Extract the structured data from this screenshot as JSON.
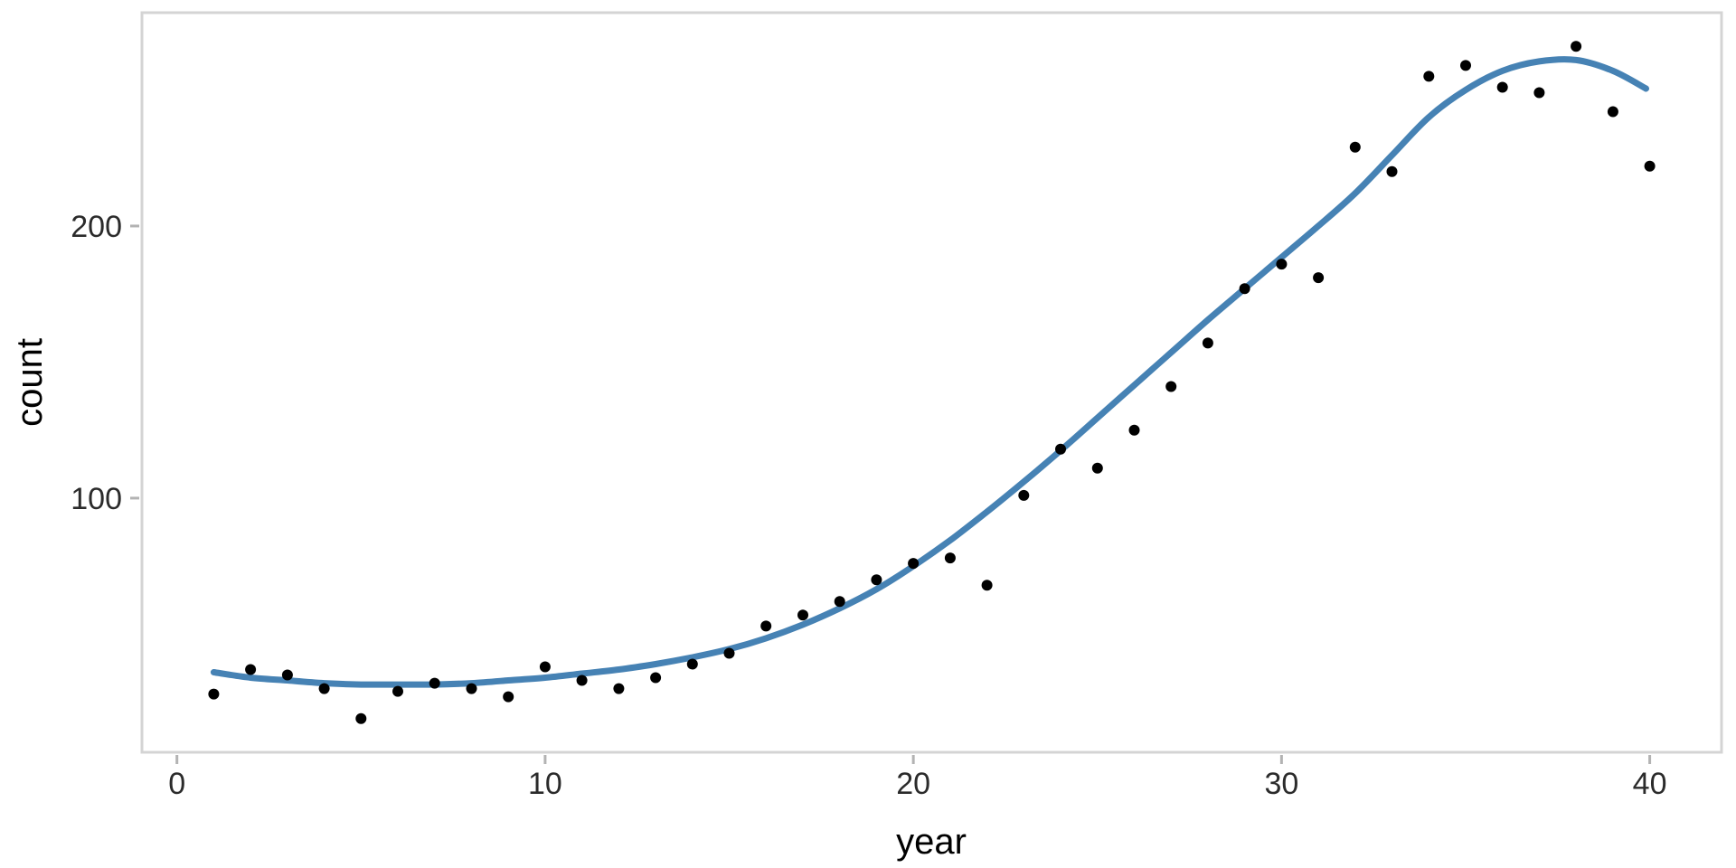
{
  "chart_data": {
    "type": "scatter",
    "title": "",
    "xlabel": "year",
    "ylabel": "count",
    "x_ticks": [
      0,
      10,
      20,
      30,
      40
    ],
    "y_ticks": [
      100,
      200
    ],
    "xlim": [
      -0.95,
      41.95
    ],
    "ylim": [
      6.6,
      278.4
    ],
    "grid": false,
    "legend": "none",
    "series": [
      {
        "name": "observed-counts",
        "type": "point",
        "color": "#000000",
        "point_radius": 6,
        "x": [
          1,
          2,
          3,
          4,
          5,
          6,
          7,
          8,
          9,
          10,
          11,
          12,
          13,
          14,
          15,
          16,
          17,
          18,
          19,
          20,
          21,
          22,
          23,
          24,
          25,
          26,
          27,
          28,
          29,
          30,
          31,
          32,
          33,
          34,
          35,
          36,
          37,
          38,
          39,
          40
        ],
        "y": [
          28,
          37,
          35,
          30,
          19,
          29,
          32,
          30,
          27,
          38,
          33,
          30,
          34,
          39,
          43,
          53,
          57,
          62,
          70,
          76,
          78,
          68,
          101,
          118,
          111,
          125,
          141,
          157,
          177,
          186,
          181,
          229,
          220,
          255,
          259,
          251,
          249,
          266,
          242,
          222
        ]
      },
      {
        "name": "smooth-trend",
        "type": "line",
        "color": "#4682B4",
        "stroke_width": 7,
        "x": [
          1,
          2,
          3,
          4,
          5,
          6,
          7,
          8,
          9,
          10,
          11,
          12,
          13,
          14,
          15,
          16,
          17,
          18,
          19,
          20,
          21,
          22,
          23,
          24,
          25,
          26,
          27,
          28,
          29,
          30,
          31,
          32,
          33,
          34,
          35,
          36,
          37,
          38,
          39,
          39.9
        ],
        "y": [
          36,
          34,
          33,
          32,
          31.5,
          31.5,
          31.5,
          32,
          33,
          34,
          35.5,
          37,
          39,
          41.5,
          44.5,
          48.5,
          53.5,
          59.5,
          66.5,
          75,
          84.5,
          95,
          106,
          117.5,
          129.5,
          141.5,
          153.5,
          165.5,
          177,
          188.5,
          200,
          212,
          226,
          240,
          250,
          257,
          260.5,
          261,
          257,
          250.5
        ]
      }
    ]
  },
  "style": {
    "background": "#ffffff",
    "panel_fill": "#ffffff",
    "panel_border": "#d4d4d4",
    "tick_color": "#b3b3b3",
    "tick_label_color": "#2b2b2b",
    "axis_title_color": "#000000",
    "point_color": "#000000",
    "smooth_line_color": "#4682B4"
  }
}
